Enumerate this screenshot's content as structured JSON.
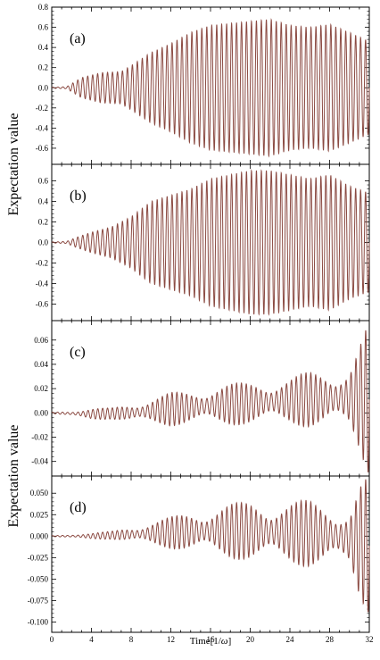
{
  "figure": {
    "y_title_top": "Expectation value",
    "y_title_bottom": "Expectation value",
    "x_title_prefix": "Time[1/",
    "x_title_symbol": "ω",
    "x_title_suffix": "]"
  },
  "colors": {
    "series": "#8b4a42",
    "axis": "#000000",
    "background": "#ffffff"
  },
  "chart_data": [
    {
      "type": "line",
      "panel_label": "(a)",
      "xlim": [
        0,
        32
      ],
      "ylim": [
        -0.76,
        0.8
      ],
      "x_ticks": [
        0,
        4,
        8,
        12,
        16,
        20,
        24,
        28,
        32
      ],
      "y_ticks": [
        -0.6,
        -0.4,
        -0.2,
        0.0,
        0.2,
        0.4,
        0.6,
        0.8
      ],
      "y_tick_labels": [
        "-0.6",
        "-0.4",
        "-0.2",
        "0.0",
        "0.2",
        "0.4",
        "0.6",
        "0.8"
      ],
      "oscillation_period": 0.5,
      "envelope": {
        "t": [
          0,
          1.5,
          3,
          5,
          7,
          8,
          10,
          12,
          14,
          16,
          18,
          20,
          22,
          24,
          26,
          28,
          30,
          32
        ],
        "amplitude": [
          0.005,
          0.01,
          0.1,
          0.15,
          0.16,
          0.22,
          0.35,
          0.44,
          0.55,
          0.62,
          0.64,
          0.66,
          0.68,
          0.62,
          0.6,
          0.63,
          0.55,
          0.46
        ]
      }
    },
    {
      "type": "line",
      "panel_label": "(b)",
      "xlim": [
        0,
        32
      ],
      "ylim": [
        -0.76,
        0.76
      ],
      "x_ticks": [
        0,
        4,
        8,
        12,
        16,
        20,
        24,
        28,
        32
      ],
      "y_ticks": [
        -0.6,
        -0.4,
        -0.2,
        0.0,
        0.2,
        0.4,
        0.6
      ],
      "y_tick_labels": [
        "-0.6",
        "-0.4",
        "-0.2",
        "0.0",
        "0.2",
        "0.4",
        "0.6"
      ],
      "oscillation_period": 0.5,
      "envelope": {
        "t": [
          0,
          1.5,
          2.5,
          4,
          6,
          8,
          10,
          12,
          14,
          16,
          18,
          20,
          22,
          24,
          26,
          28,
          30,
          32
        ],
        "amplitude": [
          0.005,
          0.01,
          0.05,
          0.1,
          0.15,
          0.25,
          0.4,
          0.46,
          0.52,
          0.62,
          0.66,
          0.7,
          0.7,
          0.66,
          0.62,
          0.66,
          0.55,
          0.48
        ]
      }
    },
    {
      "type": "line",
      "panel_label": "(c)",
      "xlim": [
        0,
        32
      ],
      "ylim": [
        -0.052,
        0.076
      ],
      "x_ticks": [
        0,
        4,
        8,
        12,
        16,
        20,
        24,
        28,
        32
      ],
      "y_ticks": [
        -0.04,
        -0.02,
        0.0,
        0.02,
        0.04,
        0.06
      ],
      "y_tick_labels": [
        "-0.04",
        "-0.02",
        "0.00",
        "0.02",
        "0.04",
        "0.06"
      ],
      "oscillation_period": 0.5,
      "envelope": {
        "t": [
          0,
          2,
          4,
          6,
          8,
          10,
          12,
          14,
          16,
          18,
          20,
          22,
          24,
          26,
          28,
          30,
          31,
          32
        ],
        "amplitude": [
          0.0005,
          0.002,
          0.004,
          0.004,
          0.007,
          0.009,
          0.012,
          0.012,
          0.014,
          0.015,
          0.015,
          0.016,
          0.017,
          0.02,
          0.02,
          0.024,
          0.04,
          0.055
        ]
      },
      "offset": {
        "t": [
          0,
          4,
          8,
          12,
          16,
          20,
          24,
          28,
          32
        ],
        "value": [
          0.0,
          -0.001,
          0.0,
          0.003,
          0.006,
          0.008,
          0.01,
          0.012,
          0.012
        ]
      }
    },
    {
      "type": "line",
      "panel_label": "(d)",
      "xlim": [
        0,
        32
      ],
      "ylim": [
        -0.112,
        0.07
      ],
      "x_ticks": [
        0,
        4,
        8,
        12,
        16,
        20,
        24,
        28,
        32
      ],
      "y_ticks": [
        -0.1,
        -0.075,
        -0.05,
        -0.025,
        0.0,
        0.025,
        0.05
      ],
      "y_tick_labels": [
        "-0.100",
        "-0.075",
        "-0.050",
        "-0.025",
        "0.000",
        "0.025",
        "0.050"
      ],
      "oscillation_period": 0.5,
      "envelope": {
        "t": [
          0,
          2,
          4,
          6,
          8,
          10,
          12,
          14,
          16,
          18,
          20,
          22,
          24,
          26,
          28,
          30,
          31,
          32
        ],
        "amplitude": [
          0.0005,
          0.002,
          0.003,
          0.004,
          0.008,
          0.012,
          0.016,
          0.02,
          0.024,
          0.028,
          0.03,
          0.03,
          0.032,
          0.034,
          0.03,
          0.03,
          0.06,
          0.07
        ]
      },
      "offset": {
        "t": [
          0,
          4,
          8,
          12,
          16,
          20,
          24,
          28,
          32
        ],
        "value": [
          0.0,
          0.0,
          0.002,
          0.004,
          0.006,
          0.006,
          0.004,
          0.002,
          -0.01
        ]
      }
    }
  ]
}
